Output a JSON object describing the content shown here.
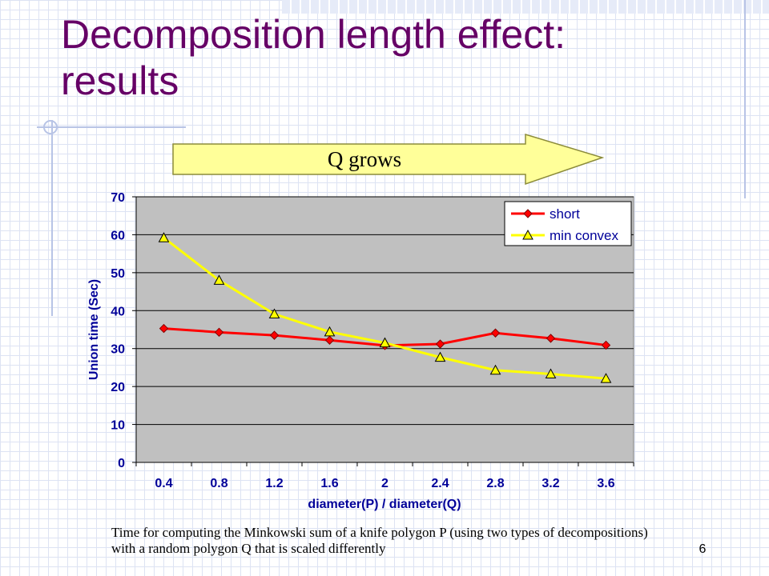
{
  "slide": {
    "title": "Decomposition length effect: results",
    "arrow_label": "Q grows",
    "caption": "Time for computing the Minkowski sum of a knife polygon P (using two types of decompositions) with a random polygon Q that is scaled differently",
    "page_number": "6"
  },
  "colors": {
    "title": "#660066",
    "plot_background": "#c0c0c0",
    "arrow_fill": "#ffff99",
    "short_series": "#ff0000",
    "min_convex_series": "#ffff00"
  },
  "chart_data": {
    "type": "line",
    "xlabel": "diameter(P) / diameter(Q)",
    "ylabel": "Union time (Sec)",
    "categories": [
      "0.4",
      "0.8",
      "1.2",
      "1.6",
      "2",
      "2.4",
      "2.8",
      "3.2",
      "3.6"
    ],
    "ylim": [
      0,
      70
    ],
    "yticks": [
      0,
      10,
      20,
      30,
      40,
      50,
      60,
      70
    ],
    "grid": true,
    "legend_position": "top-right",
    "series": [
      {
        "name": "short",
        "marker": "diamond",
        "color": "#ff0000",
        "values": [
          35.3,
          34.3,
          33.5,
          32.2,
          30.8,
          31.2,
          34.1,
          32.7,
          30.9
        ]
      },
      {
        "name": "min convex",
        "marker": "triangle",
        "color": "#ffff00",
        "values": [
          59.2,
          48.0,
          39.1,
          34.4,
          31.5,
          27.7,
          24.3,
          23.3,
          22.1
        ]
      }
    ]
  }
}
